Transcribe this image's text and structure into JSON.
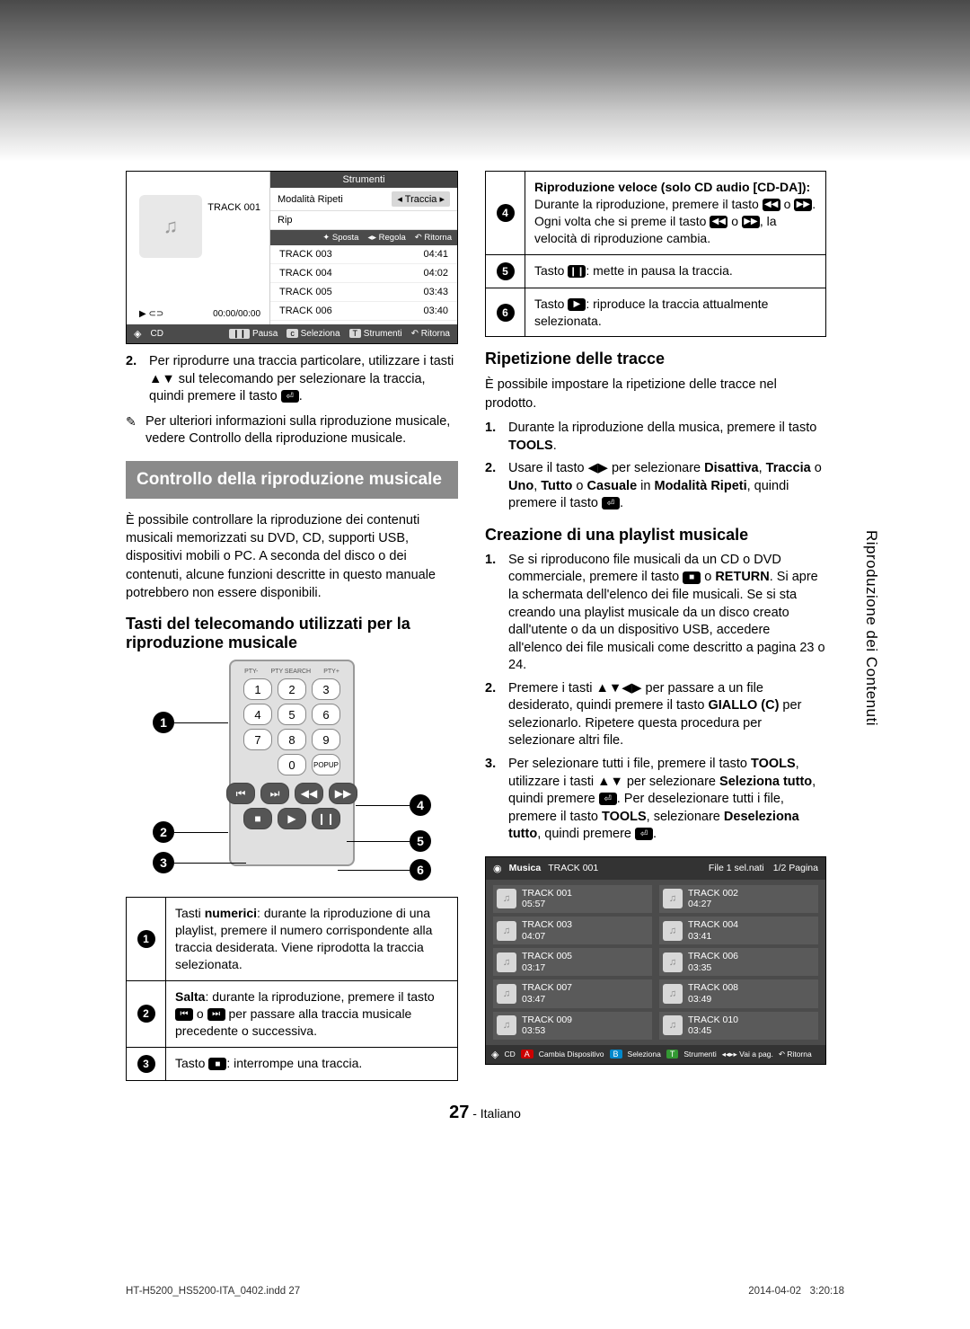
{
  "trackScreen": {
    "currentTrack": "TRACK 001",
    "time": "00:00/00:00",
    "toolsHeader": "Strumenti",
    "modeLabel": "Modalità Ripeti",
    "modeValue": "Traccia",
    "rip": "Rip",
    "ctrls": {
      "a": "✦ Sposta",
      "b": "◂▸ Regola",
      "c": "↶ Ritorna"
    },
    "tracks": [
      {
        "name": "TRACK 003",
        "dur": "04:41"
      },
      {
        "name": "TRACK 004",
        "dur": "04:02"
      },
      {
        "name": "TRACK 005",
        "dur": "03:43"
      },
      {
        "name": "TRACK 006",
        "dur": "03:40"
      }
    ],
    "footer": {
      "source": "CD",
      "pause": "Pausa",
      "select": "Seleziona",
      "tools": "Strumenti",
      "return": "↶ Ritorna"
    }
  },
  "leftBody": {
    "p2": "Per riprodurre una traccia particolare, utilizzare i tasti ▲▼ sul telecomando per selezionare la traccia, quindi premere il tasto ",
    "note": "Per ulteriori informazioni sulla riproduzione musicale, vedere Controllo della riproduzione musicale.",
    "header": "Controllo della riproduzione musicale",
    "intro": "È possibile controllare la riproduzione dei contenuti musicali memorizzati su DVD, CD, supporti USB, dispositivi mobili o PC. A seconda del disco o dei contenuti, alcune funzioni descritte in questo manuale potrebbero non essere disponibili.",
    "sub1": "Tasti del telecomando utilizzati per la riproduzione musicale"
  },
  "keytab": {
    "r1a": "Tasti ",
    "r1b": "numerici",
    "r1c": ": durante la riproduzione di una playlist, premere il numero corrispondente alla traccia desiderata. Viene riprodotta la traccia selezionata.",
    "r2a": "Salta",
    "r2b": ": durante la riproduzione, premere il tasto ",
    "r2c": " o ",
    "r2d": " per passare alla traccia musicale precedente o successiva.",
    "r3a": "Tasto ",
    "r3b": ": interrompe una traccia."
  },
  "rightTab": {
    "r4title": "Riproduzione veloce (solo CD audio [CD-DA]):",
    "r4a": "Durante la riproduzione, premere il tasto ",
    "r4b": " o ",
    "r4c": ". Ogni volta che si preme il tasto ",
    "r4d": " o ",
    "r4e": ", la velocità di riproduzione cambia.",
    "r5a": "Tasto ",
    "r5b": ": mette in pausa la traccia.",
    "r6a": "Tasto ",
    "r6b": ": riproduce la traccia attualmente selezionata."
  },
  "ripetizione": {
    "h": "Ripetizione delle tracce",
    "intro": "È possibile impostare la ripetizione delle tracce nel prodotto.",
    "s1": "Durante la riproduzione della musica, premere il tasto ",
    "s1b": "TOOLS",
    "s2a": "Usare il tasto ◀▶ per selezionare ",
    "s2b": "Disattiva",
    "s2c": "Traccia",
    "s2d": "Uno",
    "s2e": "Tutto",
    "s2f": "Casuale",
    "s2g": "Modalità Ripeti",
    "s2h": ", quindi premere il tasto "
  },
  "playlist": {
    "h": "Creazione di una playlist musicale",
    "s1a": "Se si riproducono file musicali da un CD o DVD commerciale, premere il tasto ",
    "s1b": "RETURN",
    "s1c": ". Si apre la schermata dell'elenco dei file musicali. Se si sta creando una playlist musicale da un disco creato dall'utente o da un dispositivo USB, accedere all'elenco dei file musicali come descritto a pagina 23 o 24.",
    "s2a": "Premere i tasti ▲▼◀▶ per passare a un file desiderato, quindi premere il tasto ",
    "s2b": "GIALLO (C)",
    "s2c": " per selezionarlo. Ripetere questa procedura per selezionare altri file.",
    "s3a": "Per selezionare tutti i file, premere il tasto ",
    "s3b": "TOOLS",
    "s3c": ", utilizzare i tasti ▲▼ per selezionare ",
    "s3d": "Seleziona tutto",
    "s3e": ", quindi premere ",
    "s3f": ". Per deselezionare tutti i file, premere il tasto ",
    "s3g": "TOOLS",
    "s3h": ", selezionare ",
    "s3i": "Deseleziona tutto",
    "s3j": ", quindi premere "
  },
  "musica": {
    "title": "Musica",
    "track": "TRACK 001",
    "selInfo": "File 1 sel.nati",
    "page": "1/2 Pagina",
    "items": [
      {
        "n": "TRACK 001",
        "d": "05:57"
      },
      {
        "n": "TRACK 002",
        "d": "04:27"
      },
      {
        "n": "TRACK 003",
        "d": "04:07"
      },
      {
        "n": "TRACK 004",
        "d": "03:41"
      },
      {
        "n": "TRACK 005",
        "d": "03:17"
      },
      {
        "n": "TRACK 006",
        "d": "03:35"
      },
      {
        "n": "TRACK 007",
        "d": "03:47"
      },
      {
        "n": "TRACK 008",
        "d": "03:49"
      },
      {
        "n": "TRACK 009",
        "d": "03:53"
      },
      {
        "n": "TRACK 010",
        "d": "03:45"
      }
    ],
    "footer": {
      "src": "CD",
      "a": "Cambia Dispositivo",
      "b": "Seleziona",
      "c": "Strumenti",
      "d": "◂◂▸▸ Vai a pag.",
      "e": "↶ Ritorna"
    }
  },
  "sideTab": "Riproduzione dei Contenuti",
  "pageNum": "27",
  "pageLang": " - Italiano",
  "footL": "HT-H5200_HS5200-ITA_0402.indd   27",
  "footR1": "2014-04-02",
  "footR2": "3:20:18"
}
